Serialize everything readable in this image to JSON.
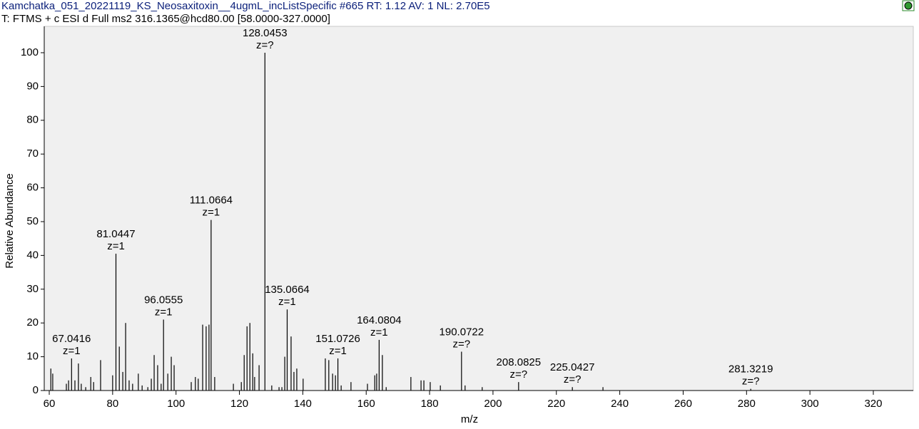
{
  "chart_data": {
    "type": "stem",
    "title": "Kamchatka_051_20221119_KS_Neosaxitoxin__4ugmL_incListSpecific #665  RT: 1.12  AV: 1  NL: 2.70E5",
    "subtitle": "T: FTMS + c ESI d Full ms2 316.1365@hcd80.00 [58.0000-327.0000]",
    "x_label": "m/z",
    "y_label": "Relative Abundance",
    "xlim": [
      58.42,
      332.61
    ],
    "ylim": [
      0,
      107.8
    ],
    "xticks": [
      60,
      80,
      100,
      120,
      140,
      160,
      180,
      200,
      220,
      240,
      260,
      280,
      300,
      320
    ],
    "yticks": [
      0,
      10,
      20,
      30,
      40,
      50,
      60,
      70,
      80,
      90,
      100
    ],
    "color": "#000000",
    "x": [
      60.5,
      61.1,
      65.4,
      66.1,
      67.0416,
      68.1,
      69.2,
      70.1,
      71.5,
      73.1,
      74.0,
      76.2,
      80.0,
      81.0447,
      82.1,
      83.2,
      84.1,
      85.2,
      86.3,
      88.1,
      89.3,
      91.1,
      92.2,
      93.1,
      94.2,
      95.3,
      96.0555,
      97.4,
      98.5,
      99.4,
      104.8,
      106.1,
      107.0,
      108.4,
      109.5,
      110.4,
      111.0664,
      112.2,
      118.1,
      120.6,
      121.5,
      122.4,
      123.3,
      124.2,
      124.8,
      126.2,
      128.0453,
      130.2,
      132.5,
      133.4,
      134.3,
      135.0664,
      136.3,
      137.2,
      138.1,
      140.1,
      147.1,
      148.2,
      149.4,
      150.3,
      151.0726,
      152.1,
      155.2,
      160.4,
      162.7,
      163.3,
      164.0804,
      165.1,
      166.3,
      174.1,
      177.3,
      178.2,
      180.2,
      183.4,
      190.0722,
      191.2,
      196.6,
      208.0825,
      225.0427,
      234.7,
      281.3219
    ],
    "values": [
      6.5,
      5,
      2,
      3,
      9.5,
      3,
      8,
      2,
      1,
      4,
      2.5,
      9,
      4.5,
      40.5,
      13,
      5.5,
      20,
      3,
      2,
      5,
      1.5,
      1,
      3.5,
      10.5,
      7.5,
      2,
      21,
      5,
      10,
      7.5,
      2.5,
      4,
      3.5,
      19.5,
      19,
      19.5,
      50.5,
      4,
      2,
      2.5,
      10.5,
      19,
      20,
      11,
      4,
      7.5,
      100,
      1.5,
      1,
      1,
      10,
      24,
      16,
      5.5,
      6.5,
      3.5,
      9.5,
      9,
      5,
      4.5,
      9.5,
      1.5,
      2.5,
      2,
      4.5,
      5,
      15,
      10.5,
      1,
      4,
      3,
      3,
      2.5,
      1.5,
      11.5,
      1.5,
      1,
      2.5,
      1,
      1,
      0.5
    ],
    "charges": [
      null,
      null,
      null,
      null,
      "z=1",
      null,
      null,
      null,
      null,
      null,
      null,
      null,
      null,
      "z=1",
      null,
      null,
      null,
      null,
      null,
      null,
      null,
      null,
      null,
      null,
      null,
      null,
      "z=1",
      null,
      null,
      null,
      null,
      null,
      null,
      null,
      null,
      null,
      "z=1",
      null,
      null,
      null,
      null,
      null,
      null,
      null,
      null,
      null,
      "z=?",
      null,
      null,
      null,
      null,
      "z=1",
      null,
      null,
      null,
      null,
      null,
      null,
      null,
      null,
      "z=1",
      null,
      null,
      null,
      null,
      null,
      "z=1",
      null,
      null,
      null,
      null,
      null,
      null,
      null,
      "z=?",
      null,
      null,
      "z=?",
      "z=?",
      null,
      "z=?"
    ]
  }
}
